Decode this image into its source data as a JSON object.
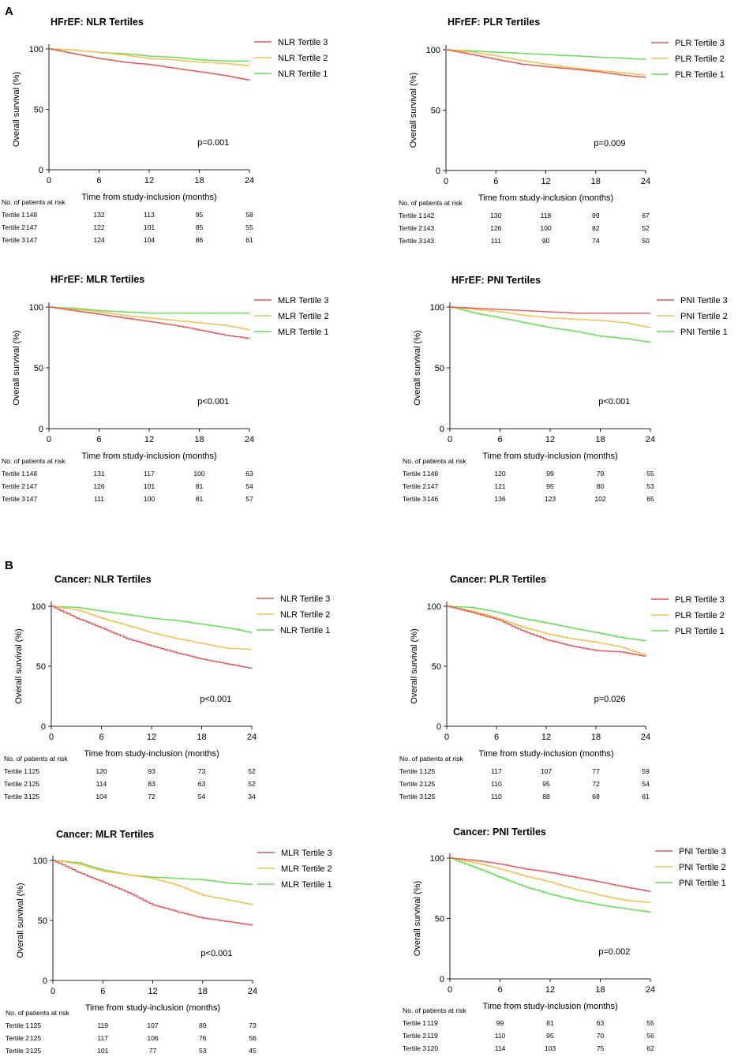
{
  "sections": [
    {
      "label": "A"
    },
    {
      "label": "B"
    }
  ],
  "common": {
    "xlabel": "Time from study-inclusion (months)",
    "ylabel": "Overall survival (%)",
    "risk_header": "No. of patients at risk",
    "risk_rows": [
      "Tertile 1",
      "Tertile 2",
      "Tertile 3"
    ],
    "xticks": [
      0,
      6,
      12,
      18,
      24
    ],
    "yticks": [
      0,
      50,
      100
    ]
  },
  "colors": {
    "tertile1": "#66dd55",
    "tertile2": "#f2c14e",
    "tertile3": "#e25a5a"
  },
  "chart_data": [
    {
      "type": "line",
      "title": "HFrEF: NLR Tertiles",
      "xlabel": "Time from study-inclusion (months)",
      "ylabel": "Overall survival (%)",
      "xlim": [
        0,
        24
      ],
      "ylim": [
        0,
        100
      ],
      "p_value": "p=0.001",
      "x": [
        0,
        3,
        6,
        9,
        12,
        15,
        18,
        21,
        24
      ],
      "series": [
        {
          "name": "NLR Tertile 3",
          "values": [
            100,
            96,
            92,
            89,
            87,
            84,
            81,
            78,
            74
          ]
        },
        {
          "name": "NLR Tertile 2",
          "values": [
            100,
            99,
            97,
            95,
            92,
            91,
            89,
            88,
            86
          ]
        },
        {
          "name": "NLR Tertile 1",
          "values": [
            100,
            99,
            97,
            96,
            94,
            93,
            91,
            90,
            90
          ]
        }
      ],
      "risk_table": {
        "Tertile 1": [
          148,
          132,
          113,
          95,
          58
        ],
        "Tertile 2": [
          147,
          122,
          101,
          85,
          55
        ],
        "Tertile 3": [
          147,
          124,
          104,
          86,
          61
        ]
      }
    },
    {
      "type": "line",
      "title": "HFrEF: PLR Tertiles",
      "xlabel": "Time from study-inclusion (months)",
      "ylabel": "Overall survival (%)",
      "xlim": [
        0,
        24
      ],
      "ylim": [
        0,
        100
      ],
      "p_value": "p=0.009",
      "x": [
        0,
        3,
        6,
        9,
        12,
        15,
        18,
        21,
        24
      ],
      "series": [
        {
          "name": "PLR Tertile 3",
          "values": [
            100,
            96,
            92,
            88,
            86,
            84,
            82,
            79,
            77
          ]
        },
        {
          "name": "PLR Tertile 2",
          "values": [
            100,
            98,
            95,
            91,
            88,
            85,
            83,
            81,
            79
          ]
        },
        {
          "name": "PLR Tertile 1",
          "values": [
            100,
            99,
            98,
            97,
            96,
            95,
            94,
            93,
            92
          ]
        }
      ],
      "risk_table": {
        "Tertile 1": [
          142,
          130,
          118,
          99,
          67
        ],
        "Tertile 2": [
          143,
          126,
          100,
          82,
          52
        ],
        "Tertile 3": [
          143,
          111,
          90,
          74,
          50
        ]
      }
    },
    {
      "type": "line",
      "title": "HFrEF: MLR Tertiles",
      "xlabel": "Time from study-inclusion (months)",
      "ylabel": "Overall survival (%)",
      "xlim": [
        0,
        24
      ],
      "ylim": [
        0,
        100
      ],
      "p_value": "p<0.001",
      "x": [
        0,
        3,
        6,
        9,
        12,
        15,
        18,
        21,
        24
      ],
      "series": [
        {
          "name": "MLR Tertile 3",
          "values": [
            100,
            97,
            94,
            91,
            88,
            85,
            81,
            77,
            74
          ]
        },
        {
          "name": "MLR Tertile 2",
          "values": [
            100,
            98,
            96,
            93,
            91,
            89,
            87,
            85,
            81
          ]
        },
        {
          "name": "MLR Tertile 1",
          "values": [
            100,
            99,
            97,
            96,
            95,
            95,
            95,
            95,
            95
          ]
        }
      ],
      "risk_table": {
        "Tertile 1": [
          148,
          131,
          117,
          100,
          63
        ],
        "Tertile 2": [
          147,
          126,
          101,
          81,
          54
        ],
        "Tertile 3": [
          147,
          111,
          100,
          81,
          57
        ]
      }
    },
    {
      "type": "line",
      "title": "HFrEF: PNI Tertiles",
      "xlabel": "Time from study-inclusion (months)",
      "ylabel": "Overall survival (%)",
      "xlim": [
        0,
        24
      ],
      "ylim": [
        0,
        100
      ],
      "p_value": "p<0.001",
      "x": [
        0,
        3,
        6,
        9,
        12,
        15,
        18,
        21,
        24
      ],
      "series": [
        {
          "name": "PNI Tertile 3",
          "values": [
            100,
            99,
            98,
            97,
            96,
            95,
            95,
            95,
            95
          ]
        },
        {
          "name": "PNI Tertile 2",
          "values": [
            100,
            98,
            96,
            93,
            91,
            90,
            89,
            87,
            83
          ]
        },
        {
          "name": "PNI Tertile 1",
          "values": [
            100,
            95,
            91,
            87,
            83,
            80,
            76,
            74,
            71
          ]
        }
      ],
      "risk_table": {
        "Tertile 1": [
          148,
          120,
          99,
          79,
          55
        ],
        "Tertile 2": [
          147,
          121,
          95,
          80,
          53
        ],
        "Tertile 3": [
          146,
          136,
          123,
          102,
          65
        ]
      }
    },
    {
      "type": "line",
      "title": "Cancer: NLR Tertiles",
      "xlabel": "Time from study-inclusion (months)",
      "ylabel": "Overall survival (%)",
      "xlim": [
        0,
        24
      ],
      "ylim": [
        0,
        100
      ],
      "p_value": "p<0.001",
      "x": [
        0,
        3,
        6,
        9,
        12,
        15,
        18,
        21,
        24
      ],
      "series": [
        {
          "name": "NLR Tertile 3",
          "values": [
            100,
            90,
            82,
            73,
            67,
            61,
            56,
            52,
            48
          ]
        },
        {
          "name": "NLR Tertile 2",
          "values": [
            100,
            97,
            90,
            84,
            78,
            73,
            69,
            65,
            64
          ]
        },
        {
          "name": "NLR Tertile 1",
          "values": [
            100,
            99,
            96,
            93,
            90,
            88,
            85,
            82,
            78
          ]
        }
      ],
      "risk_table": {
        "Tertile 1": [
          125,
          120,
          93,
          73,
          52
        ],
        "Tertile 2": [
          125,
          114,
          83,
          63,
          52
        ],
        "Tertile 3": [
          125,
          104,
          72,
          54,
          34
        ]
      }
    },
    {
      "type": "line",
      "title": "Cancer: PLR Tertiles",
      "xlabel": "Time from study-inclusion (months)",
      "ylabel": "Overall survival (%)",
      "xlim": [
        0,
        24
      ],
      "ylim": [
        0,
        100
      ],
      "p_value": "p=0.026",
      "x": [
        0,
        3,
        6,
        9,
        12,
        15,
        18,
        21,
        24
      ],
      "series": [
        {
          "name": "PLR Tertile 3",
          "values": [
            100,
            95,
            89,
            80,
            72,
            67,
            63,
            62,
            58
          ]
        },
        {
          "name": "PLR Tertile 2",
          "values": [
            100,
            96,
            90,
            83,
            77,
            73,
            70,
            66,
            59
          ]
        },
        {
          "name": "PLR Tertile 1",
          "values": [
            100,
            99,
            95,
            90,
            86,
            82,
            78,
            74,
            71
          ]
        }
      ],
      "risk_table": {
        "Tertile 1": [
          125,
          117,
          107,
          77,
          59
        ],
        "Tertile 2": [
          125,
          110,
          95,
          72,
          54
        ],
        "Tertile 3": [
          125,
          110,
          88,
          68,
          61
        ]
      }
    },
    {
      "type": "line",
      "title": "Cancer: MLR Tertiles",
      "xlabel": "Time from study-inclusion (months)",
      "ylabel": "Overall survival (%)",
      "xlim": [
        0,
        24
      ],
      "ylim": [
        0,
        100
      ],
      "p_value": "p<0.001",
      "x": [
        0,
        3,
        6,
        9,
        12,
        15,
        18,
        21,
        24
      ],
      "series": [
        {
          "name": "MLR Tertile 3",
          "values": [
            100,
            90,
            82,
            73,
            63,
            57,
            52,
            49,
            46
          ]
        },
        {
          "name": "MLR Tertile 2",
          "values": [
            100,
            97,
            91,
            88,
            85,
            79,
            71,
            67,
            63
          ]
        },
        {
          "name": "MLR Tertile 1",
          "values": [
            100,
            98,
            92,
            88,
            86,
            85,
            84,
            81,
            80
          ]
        }
      ],
      "risk_table": {
        "Tertile 1": [
          125,
          119,
          107,
          89,
          73
        ],
        "Tertile 2": [
          125,
          117,
          106,
          76,
          56
        ],
        "Tertile 3": [
          125,
          101,
          77,
          53,
          45
        ]
      }
    },
    {
      "type": "line",
      "title": "Cancer: PNI Tertiles",
      "xlabel": "Time from study-inclusion (months)",
      "ylabel": "Overall survival (%)",
      "xlim": [
        0,
        24
      ],
      "ylim": [
        0,
        100
      ],
      "p_value": "p=0.002",
      "x": [
        0,
        3,
        6,
        9,
        12,
        15,
        18,
        21,
        24
      ],
      "series": [
        {
          "name": "PNI Tertile 3",
          "values": [
            100,
            98,
            95,
            91,
            88,
            84,
            80,
            76,
            72
          ]
        },
        {
          "name": "PNI Tertile 2",
          "values": [
            100,
            96,
            91,
            85,
            80,
            74,
            69,
            65,
            63
          ]
        },
        {
          "name": "PNI Tertile 1",
          "values": [
            100,
            92,
            84,
            76,
            70,
            65,
            61,
            58,
            55
          ]
        }
      ],
      "risk_table": {
        "Tertile 1": [
          119,
          99,
          81,
          63,
          55
        ],
        "Tertile 2": [
          119,
          110,
          95,
          70,
          56
        ],
        "Tertile 3": [
          120,
          114,
          103,
          75,
          62
        ]
      }
    }
  ]
}
